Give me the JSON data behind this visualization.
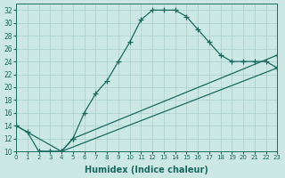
{
  "xlabel": "Humidex (Indice chaleur)",
  "bg_color": "#cce8e5",
  "line_color": "#1a6b5e",
  "grid_color": "#aacfcc",
  "xlim": [
    0,
    23
  ],
  "ylim": [
    10,
    33
  ],
  "xticks": [
    0,
    1,
    2,
    3,
    4,
    5,
    6,
    7,
    8,
    9,
    10,
    11,
    12,
    13,
    14,
    15,
    16,
    17,
    18,
    19,
    20,
    21,
    22,
    23
  ],
  "yticks": [
    10,
    12,
    14,
    16,
    18,
    20,
    22,
    24,
    26,
    28,
    30,
    32
  ],
  "curve1_x": [
    0,
    1,
    2,
    3,
    4,
    5,
    6,
    7,
    8,
    9,
    10,
    11,
    12,
    13,
    14,
    15,
    16,
    17,
    18,
    19,
    20,
    21,
    22,
    23
  ],
  "curve1_y": [
    14,
    13,
    10,
    10,
    10,
    12,
    16,
    19,
    21,
    24,
    27,
    30.5,
    32,
    32,
    32,
    31,
    29,
    27,
    25,
    24,
    24,
    24,
    24,
    23
  ],
  "curve2_x": [
    0,
    4,
    5,
    23
  ],
  "curve2_y": [
    14,
    10,
    12,
    25
  ],
  "curve3_x": [
    2,
    3,
    4,
    23
  ],
  "curve3_y": [
    10,
    10,
    10,
    23
  ]
}
